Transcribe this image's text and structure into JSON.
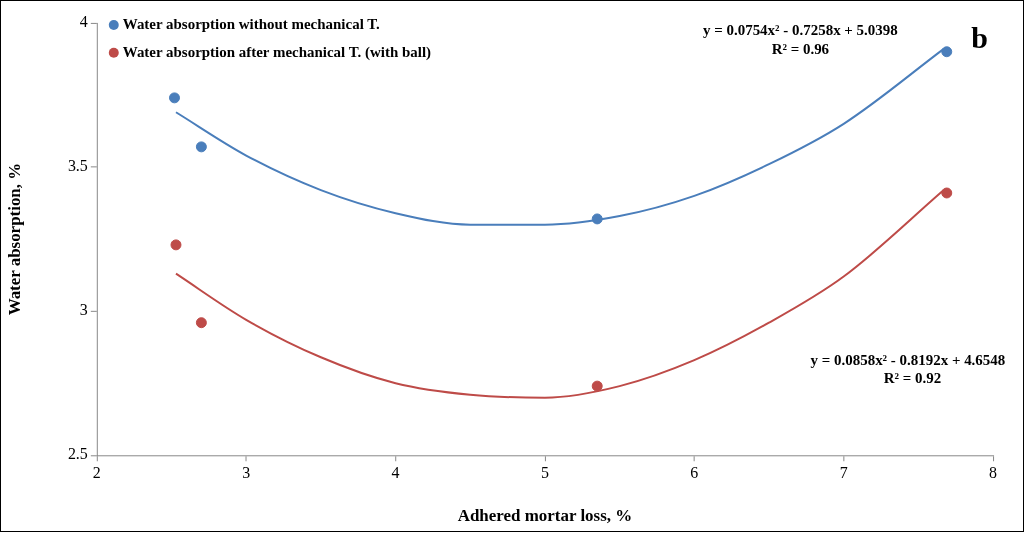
{
  "chart_data": {
    "type": "scatter",
    "xlabel": "Adhered mortar loss, %",
    "ylabel": "Water absorption, %",
    "xlim": [
      2,
      8
    ],
    "xticks": [
      2,
      3,
      4,
      5,
      6,
      7,
      8
    ],
    "ylim": [
      2.5,
      4
    ],
    "yticks": [
      2.5,
      3,
      3.5,
      4
    ],
    "legend": "top left",
    "series": [
      {
        "name": "Water absorption without mechanical T.",
        "marker": "circle",
        "color": "#4a7ebb",
        "x": [
          2.52,
          2.7,
          5.35,
          7.69
        ],
        "values": [
          3.74,
          3.57,
          3.32,
          3.9
        ]
      },
      {
        "name": "Water absorption after mechanical T. (with ball)",
        "marker": "circle",
        "color": "#be4b48",
        "x": [
          2.53,
          2.7,
          5.35,
          7.69
        ],
        "values": [
          3.23,
          2.96,
          2.74,
          3.41
        ]
      },
      {
        "type": "line",
        "marker": "none",
        "color": "#4a7ebb",
        "x": [
          2.53,
          3,
          3.5,
          4,
          4.5,
          5,
          5.5,
          6,
          6.5,
          7,
          7.67
        ],
        "values": [
          3.69,
          3.54,
          3.42,
          3.34,
          3.3,
          3.3,
          3.33,
          3.4,
          3.51,
          3.65,
          3.91
        ]
      },
      {
        "type": "line",
        "marker": "none",
        "color": "#be4b48",
        "x": [
          2.53,
          3,
          3.5,
          4,
          4.5,
          5,
          5.5,
          6,
          6.5,
          7,
          7.67
        ],
        "values": [
          3.13,
          2.97,
          2.84,
          2.75,
          2.71,
          2.7,
          2.74,
          2.83,
          2.96,
          3.12,
          3.42
        ]
      }
    ],
    "annotations": [
      "y = 0.0754x² - 0.7258x + 5.0398",
      "R² = 0.96",
      "y = 0.0858x² - 0.8192x + 4.6548",
      "R² = 0.92",
      "b"
    ]
  }
}
